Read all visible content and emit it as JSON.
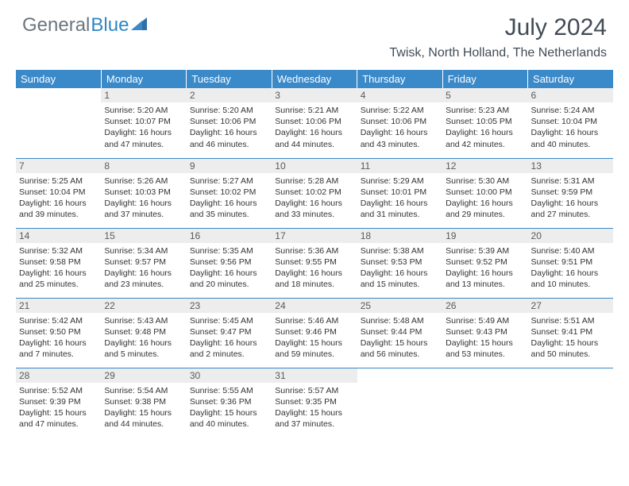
{
  "brand": {
    "text1": "General",
    "text2": "Blue"
  },
  "title": "July 2024",
  "location": "Twisk, North Holland, The Netherlands",
  "colors": {
    "header_bg": "#3a89c9",
    "header_text": "#ffffff",
    "daynum_bg": "#ededed",
    "daynum_text": "#5a5a5a",
    "cell_text": "#333333",
    "rule": "#3a89c9",
    "brand_gray": "#6b7680",
    "brand_blue": "#2f87c5"
  },
  "weekdays": [
    "Sunday",
    "Monday",
    "Tuesday",
    "Wednesday",
    "Thursday",
    "Friday",
    "Saturday"
  ],
  "weeks": [
    [
      null,
      {
        "n": "1",
        "sr": "5:20 AM",
        "ss": "10:07 PM",
        "dl": "16 hours and 47 minutes."
      },
      {
        "n": "2",
        "sr": "5:20 AM",
        "ss": "10:06 PM",
        "dl": "16 hours and 46 minutes."
      },
      {
        "n": "3",
        "sr": "5:21 AM",
        "ss": "10:06 PM",
        "dl": "16 hours and 44 minutes."
      },
      {
        "n": "4",
        "sr": "5:22 AM",
        "ss": "10:06 PM",
        "dl": "16 hours and 43 minutes."
      },
      {
        "n": "5",
        "sr": "5:23 AM",
        "ss": "10:05 PM",
        "dl": "16 hours and 42 minutes."
      },
      {
        "n": "6",
        "sr": "5:24 AM",
        "ss": "10:04 PM",
        "dl": "16 hours and 40 minutes."
      }
    ],
    [
      {
        "n": "7",
        "sr": "5:25 AM",
        "ss": "10:04 PM",
        "dl": "16 hours and 39 minutes."
      },
      {
        "n": "8",
        "sr": "5:26 AM",
        "ss": "10:03 PM",
        "dl": "16 hours and 37 minutes."
      },
      {
        "n": "9",
        "sr": "5:27 AM",
        "ss": "10:02 PM",
        "dl": "16 hours and 35 minutes."
      },
      {
        "n": "10",
        "sr": "5:28 AM",
        "ss": "10:02 PM",
        "dl": "16 hours and 33 minutes."
      },
      {
        "n": "11",
        "sr": "5:29 AM",
        "ss": "10:01 PM",
        "dl": "16 hours and 31 minutes."
      },
      {
        "n": "12",
        "sr": "5:30 AM",
        "ss": "10:00 PM",
        "dl": "16 hours and 29 minutes."
      },
      {
        "n": "13",
        "sr": "5:31 AM",
        "ss": "9:59 PM",
        "dl": "16 hours and 27 minutes."
      }
    ],
    [
      {
        "n": "14",
        "sr": "5:32 AM",
        "ss": "9:58 PM",
        "dl": "16 hours and 25 minutes."
      },
      {
        "n": "15",
        "sr": "5:34 AM",
        "ss": "9:57 PM",
        "dl": "16 hours and 23 minutes."
      },
      {
        "n": "16",
        "sr": "5:35 AM",
        "ss": "9:56 PM",
        "dl": "16 hours and 20 minutes."
      },
      {
        "n": "17",
        "sr": "5:36 AM",
        "ss": "9:55 PM",
        "dl": "16 hours and 18 minutes."
      },
      {
        "n": "18",
        "sr": "5:38 AM",
        "ss": "9:53 PM",
        "dl": "16 hours and 15 minutes."
      },
      {
        "n": "19",
        "sr": "5:39 AM",
        "ss": "9:52 PM",
        "dl": "16 hours and 13 minutes."
      },
      {
        "n": "20",
        "sr": "5:40 AM",
        "ss": "9:51 PM",
        "dl": "16 hours and 10 minutes."
      }
    ],
    [
      {
        "n": "21",
        "sr": "5:42 AM",
        "ss": "9:50 PM",
        "dl": "16 hours and 7 minutes."
      },
      {
        "n": "22",
        "sr": "5:43 AM",
        "ss": "9:48 PM",
        "dl": "16 hours and 5 minutes."
      },
      {
        "n": "23",
        "sr": "5:45 AM",
        "ss": "9:47 PM",
        "dl": "16 hours and 2 minutes."
      },
      {
        "n": "24",
        "sr": "5:46 AM",
        "ss": "9:46 PM",
        "dl": "15 hours and 59 minutes."
      },
      {
        "n": "25",
        "sr": "5:48 AM",
        "ss": "9:44 PM",
        "dl": "15 hours and 56 minutes."
      },
      {
        "n": "26",
        "sr": "5:49 AM",
        "ss": "9:43 PM",
        "dl": "15 hours and 53 minutes."
      },
      {
        "n": "27",
        "sr": "5:51 AM",
        "ss": "9:41 PM",
        "dl": "15 hours and 50 minutes."
      }
    ],
    [
      {
        "n": "28",
        "sr": "5:52 AM",
        "ss": "9:39 PM",
        "dl": "15 hours and 47 minutes."
      },
      {
        "n": "29",
        "sr": "5:54 AM",
        "ss": "9:38 PM",
        "dl": "15 hours and 44 minutes."
      },
      {
        "n": "30",
        "sr": "5:55 AM",
        "ss": "9:36 PM",
        "dl": "15 hours and 40 minutes."
      },
      {
        "n": "31",
        "sr": "5:57 AM",
        "ss": "9:35 PM",
        "dl": "15 hours and 37 minutes."
      },
      null,
      null,
      null
    ]
  ],
  "labels": {
    "sunrise": "Sunrise:",
    "sunset": "Sunset:",
    "daylight": "Daylight:"
  }
}
